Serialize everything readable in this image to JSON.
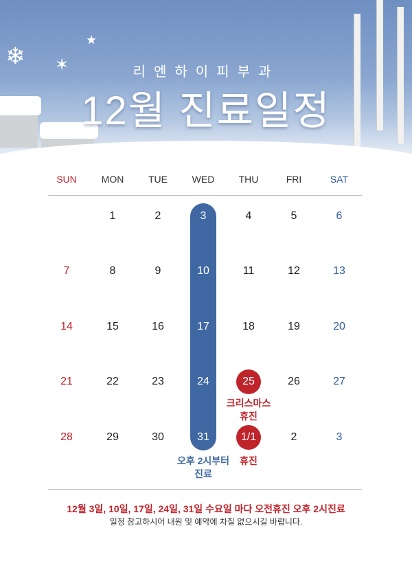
{
  "header": {
    "brand": "리엔하이피부과",
    "title": "12월 진료일정"
  },
  "weekdays": [
    "SUN",
    "MON",
    "TUE",
    "WED",
    "THU",
    "FRI",
    "SAT"
  ],
  "colors": {
    "sunday": "#c0242b",
    "saturday": "#2f5c9e",
    "wednesday_pill": "#3f68a3",
    "holiday": "#c0242b"
  },
  "weeks": [
    [
      "",
      "1",
      "2",
      "3",
      "4",
      "5",
      "6"
    ],
    [
      "7",
      "8",
      "9",
      "10",
      "11",
      "12",
      "13"
    ],
    [
      "14",
      "15",
      "16",
      "17",
      "18",
      "19",
      "20"
    ],
    [
      "21",
      "22",
      "23",
      "24",
      "25",
      "26",
      "27"
    ],
    [
      "28",
      "29",
      "30",
      "31",
      "1/1",
      "2",
      "3"
    ]
  ],
  "notes": {
    "wednesday_line1": "오후 2시부터",
    "wednesday_line2": "진료",
    "christmas_line1": "크리스마스",
    "christmas_line2": "휴진",
    "newyear": "휴진"
  },
  "footer": {
    "main": "12월 3일, 10일, 17일, 24일, 31일 수요일 마다 오전휴진 오후 2시진료",
    "sub": "일정 참고하시어 내원 및 예약에 차질 없으시길 바랍니다."
  }
}
